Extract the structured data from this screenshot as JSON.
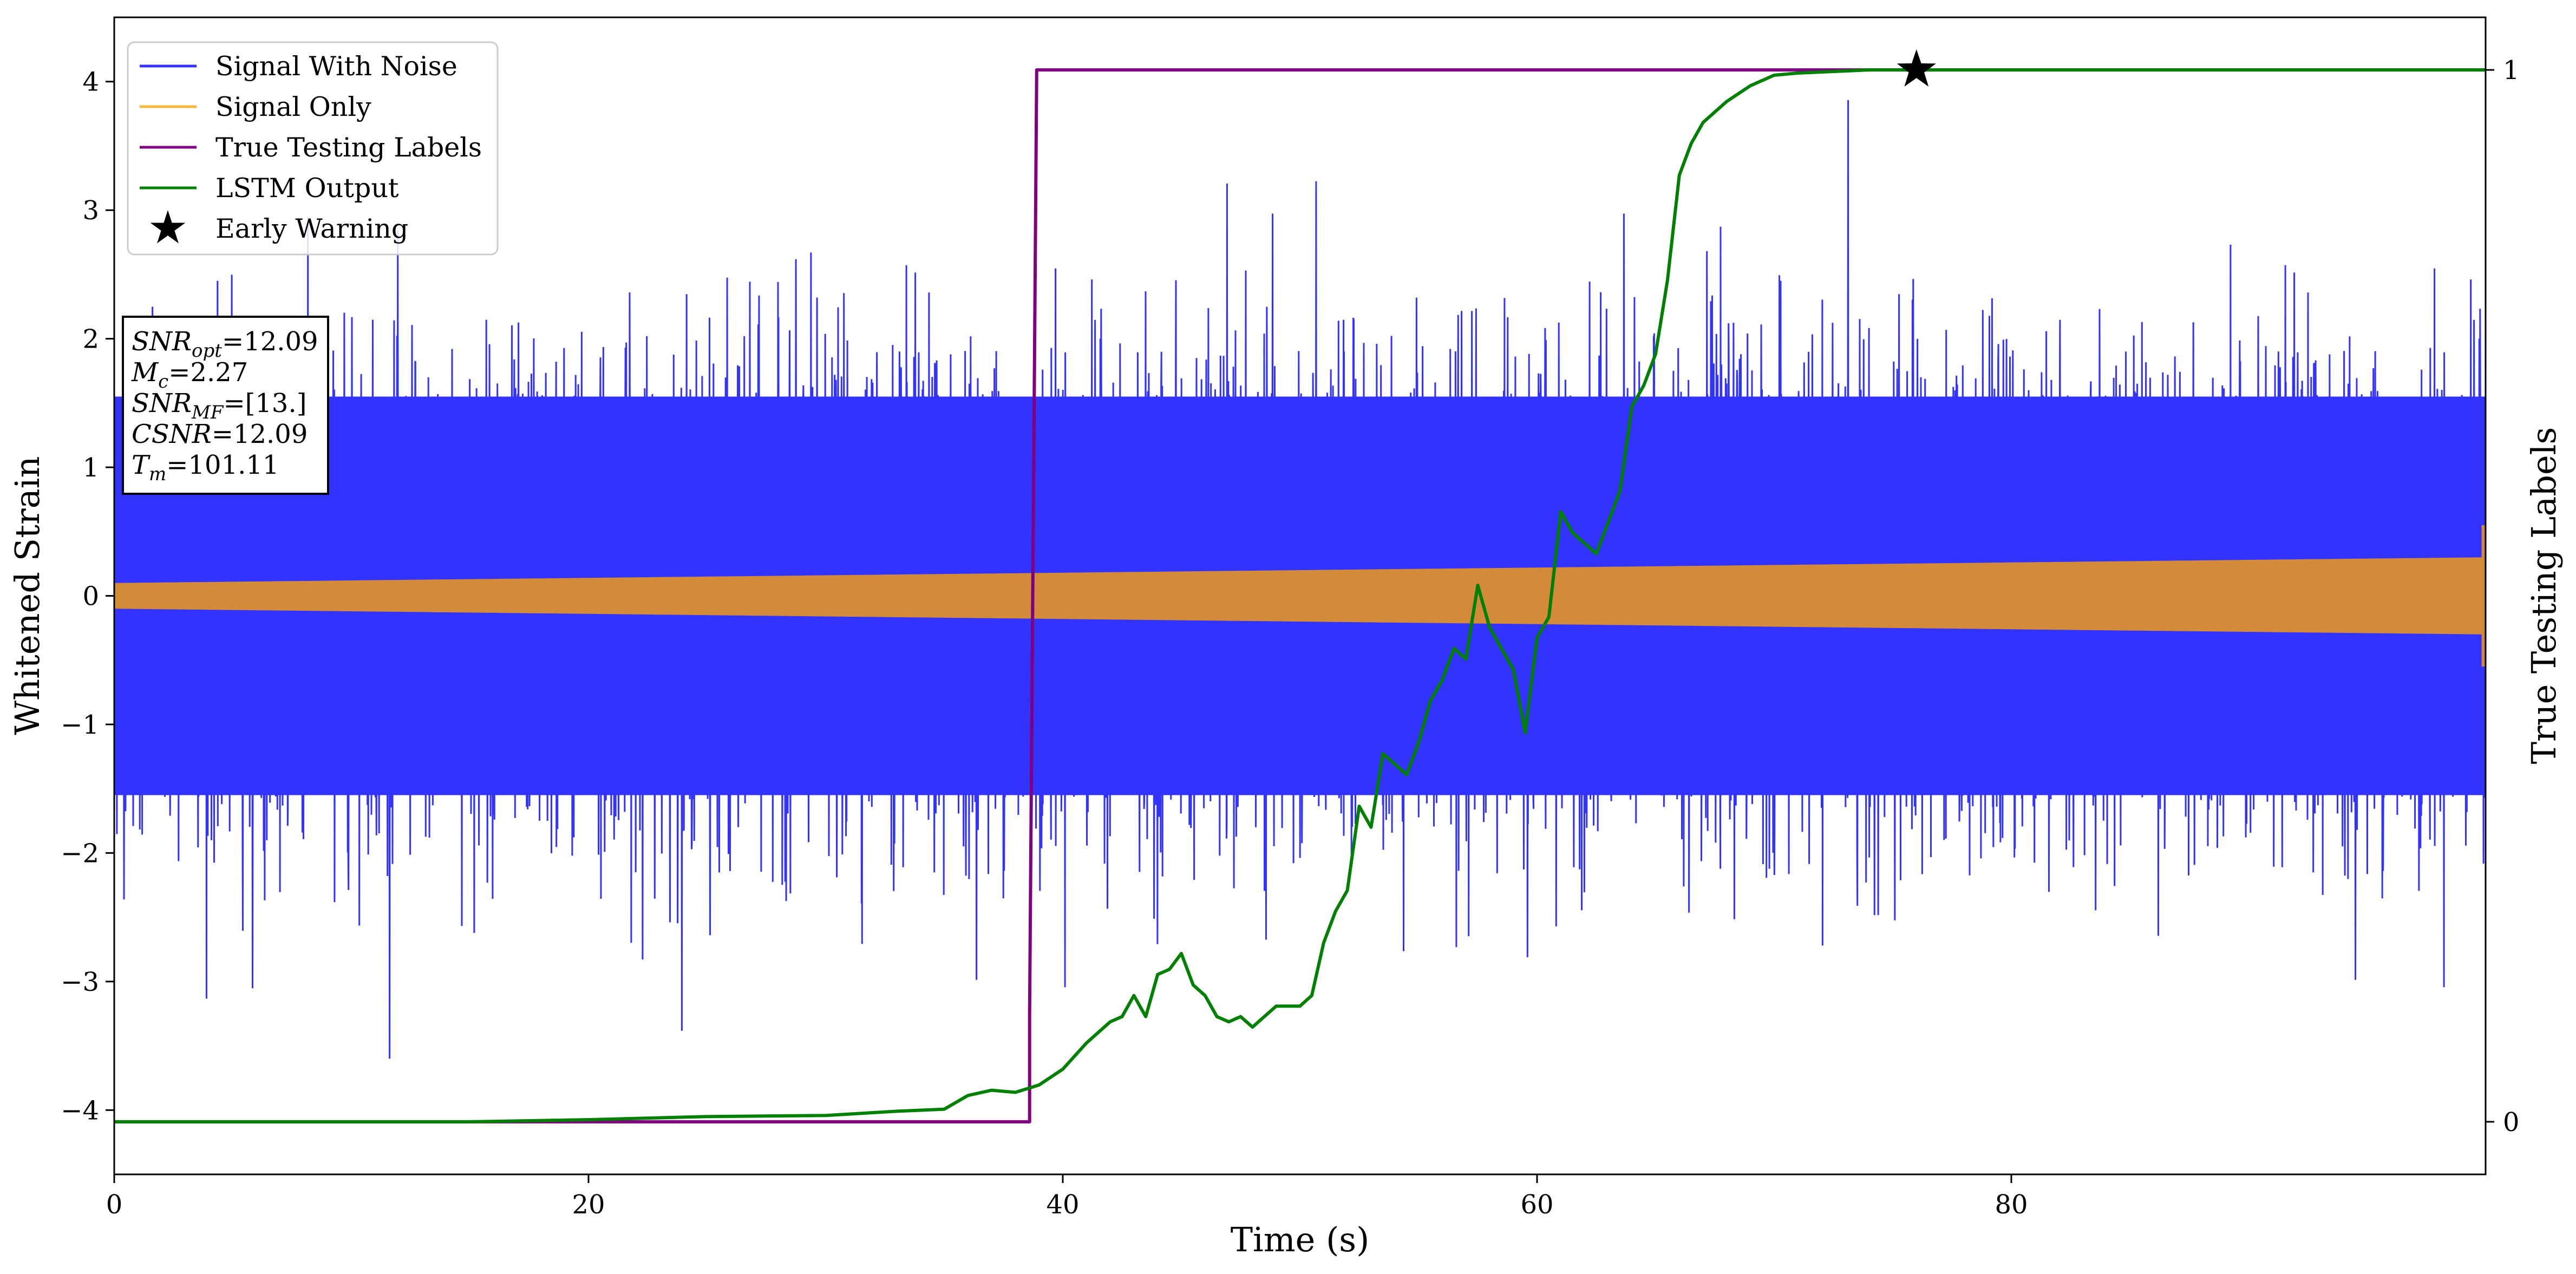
{
  "chart_data": {
    "type": "line",
    "xlabel": "Time (s)",
    "ylabel": "Whitened Strain",
    "y2label": "True Testing Labels",
    "xlim": [
      0,
      100
    ],
    "ylim": [
      -4.5,
      4.5
    ],
    "y2lim": [
      -0.05,
      1.05
    ],
    "xticks": [
      "0",
      "20",
      "40",
      "60",
      "80"
    ],
    "xtick_values": [
      0,
      20,
      40,
      60,
      80
    ],
    "yticks": [
      "−4",
      "−3",
      "−2",
      "−1",
      "0",
      "1",
      "2",
      "3",
      "4"
    ],
    "ytick_values": [
      -4,
      -3,
      -2,
      -1,
      0,
      1,
      2,
      3,
      4
    ],
    "y2ticks": [
      "0",
      "1"
    ],
    "y2tick_values": [
      0,
      1
    ],
    "grid": false,
    "legend_position": "top-left",
    "series": [
      {
        "name": "Signal With Noise",
        "color": "#3333ff",
        "axis": "left",
        "description_values": {
          "typical_band": [
            -1.6,
            1.6
          ],
          "max": 4.05,
          "min": -3.6
        }
      },
      {
        "name": "Signal Only",
        "color": "#f5b841",
        "axis": "left",
        "amplitude_envelope": {
          "x": [
            0,
            100
          ],
          "amplitude": [
            0.1,
            0.3
          ]
        }
      },
      {
        "name": "True Testing Labels",
        "color": "#800080",
        "axis": "right",
        "x": [
          0,
          38.6,
          38.6,
          38.9,
          100
        ],
        "y": [
          0,
          0,
          0.1,
          1,
          1
        ]
      },
      {
        "name": "LSTM Output",
        "color": "#008000",
        "axis": "right",
        "x": [
          0,
          15,
          20,
          25,
          30,
          33,
          35,
          36,
          37,
          38,
          39,
          40,
          41,
          42,
          42.5,
          43,
          43.5,
          44,
          44.5,
          45,
          45.5,
          46,
          46.5,
          47,
          47.5,
          48,
          49,
          50,
          50.5,
          51,
          51.5,
          52,
          52.5,
          53,
          53.5,
          54,
          54.5,
          55,
          55.5,
          56,
          56.5,
          57,
          57.5,
          58,
          58.5,
          59,
          59.5,
          60,
          60.5,
          61,
          61.5,
          62,
          62.5,
          63,
          63.5,
          64,
          64.5,
          65,
          65.5,
          66,
          66.5,
          67,
          67.5,
          68,
          69,
          70,
          71,
          72,
          73,
          74,
          75,
          76,
          80,
          100
        ],
        "y": [
          0,
          0,
          0.002,
          0.005,
          0.006,
          0.01,
          0.012,
          0.025,
          0.03,
          0.028,
          0.035,
          0.05,
          0.075,
          0.095,
          0.1,
          0.12,
          0.1,
          0.14,
          0.145,
          0.16,
          0.13,
          0.12,
          0.1,
          0.095,
          0.1,
          0.09,
          0.11,
          0.11,
          0.12,
          0.17,
          0.2,
          0.22,
          0.3,
          0.28,
          0.35,
          0.34,
          0.33,
          0.36,
          0.4,
          0.42,
          0.45,
          0.44,
          0.51,
          0.47,
          0.45,
          0.43,
          0.37,
          0.46,
          0.48,
          0.58,
          0.56,
          0.55,
          0.54,
          0.57,
          0.6,
          0.68,
          0.7,
          0.73,
          0.8,
          0.9,
          0.93,
          0.95,
          0.96,
          0.97,
          0.985,
          0.995,
          0.997,
          0.998,
          0.999,
          1.0,
          1.0,
          1.0,
          1.0,
          1.0
        ]
      }
    ],
    "markers": [
      {
        "name": "Early Warning",
        "shape": "star",
        "color": "#000000",
        "x": 76,
        "y2": 1.0
      }
    ],
    "legend": [
      {
        "label": "Signal With Noise",
        "color": "#3333ff",
        "kind": "line"
      },
      {
        "label": "Signal Only",
        "color": "#f5b841",
        "kind": "line"
      },
      {
        "label": "True Testing Labels",
        "color": "#800080",
        "kind": "line"
      },
      {
        "label": "LSTM Output",
        "color": "#008000",
        "kind": "line"
      },
      {
        "label": "Early Warning",
        "color": "#000000",
        "kind": "star"
      }
    ],
    "annotation": [
      {
        "name": "SNR",
        "sub": "opt",
        "value": "=12.09"
      },
      {
        "name": "M",
        "sub": "c",
        "value": "=2.27"
      },
      {
        "name": "SNR",
        "sub": "MF",
        "value": "=[13.]"
      },
      {
        "name": "CSNR",
        "sub": "",
        "value": "=12.09"
      },
      {
        "name": "T",
        "sub": "m",
        "value": "=101.11"
      }
    ]
  }
}
